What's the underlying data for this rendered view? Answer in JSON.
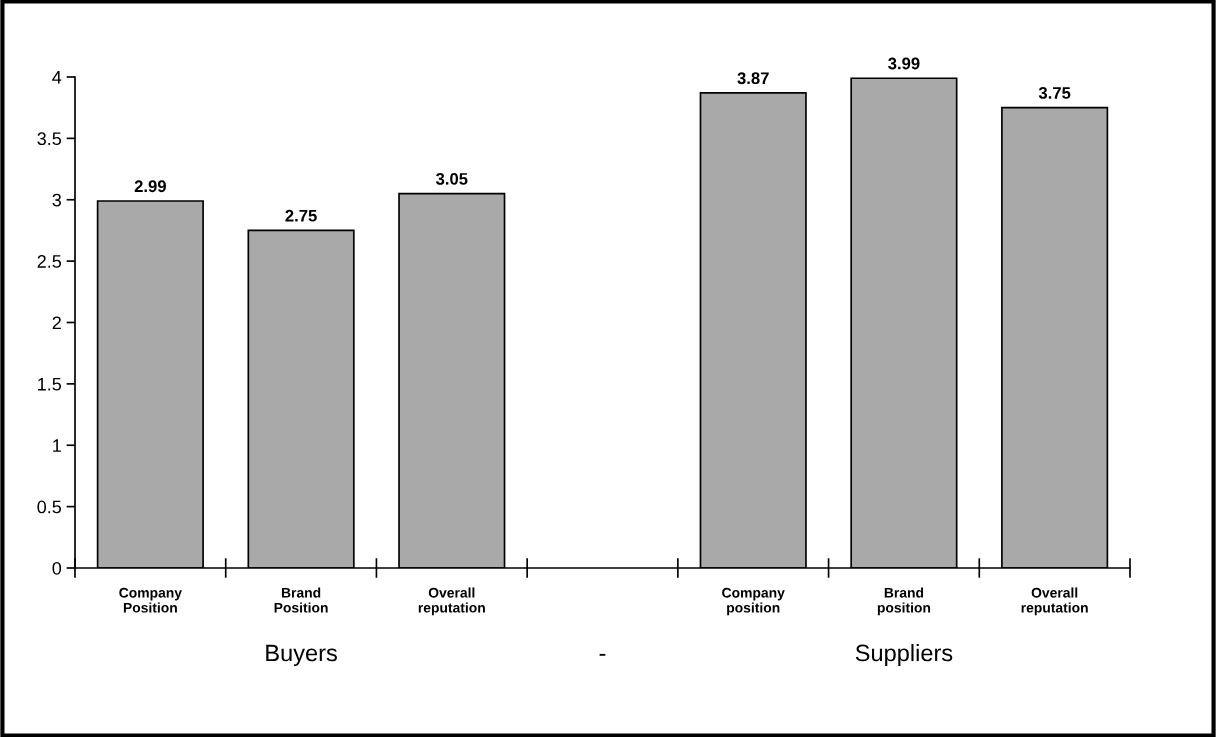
{
  "chart_data": {
    "type": "bar",
    "categories": [
      "Company\nPosition",
      "Brand\nPosition",
      "Overall\nreputation",
      null,
      "Company\nposition",
      "Brand\nposition",
      "Overall\nreputation"
    ],
    "values": [
      2.99,
      2.75,
      3.05,
      null,
      3.87,
      3.99,
      3.75
    ],
    "color": "#a9a9a9",
    "ylim": [
      0,
      4
    ],
    "yticks": [
      0,
      0.5,
      1,
      1.5,
      2,
      2.5,
      3,
      3.5,
      4
    ],
    "data_labels": true,
    "grid": false,
    "annotations": [
      "Buyers",
      "-",
      "Suppliers"
    ]
  }
}
